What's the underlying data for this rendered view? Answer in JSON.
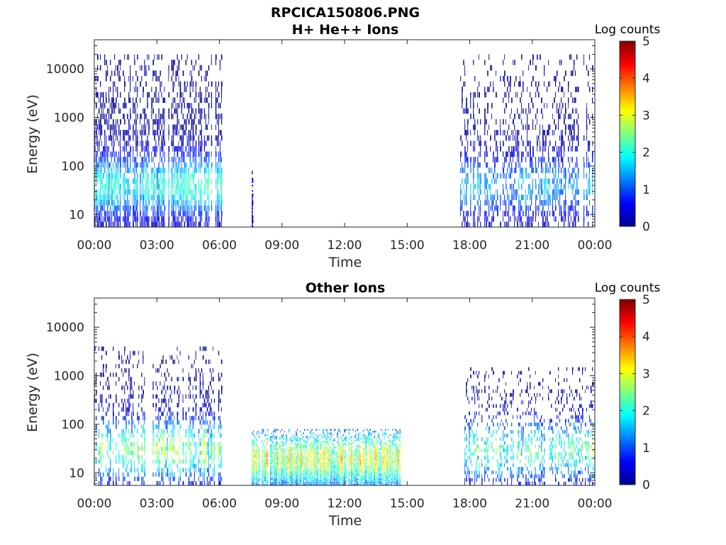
{
  "figure": {
    "title": "RPCICA150806.PNG"
  },
  "chart_data": [
    {
      "type": "heatmap",
      "title": "H+ He++ Ions",
      "xlabel": "Time",
      "ylabel": "Energy (eV)",
      "x_ticks": [
        "00:00",
        "03:00",
        "06:00",
        "09:00",
        "12:00",
        "15:00",
        "18:00",
        "21:00",
        "00:00"
      ],
      "xlim_hours": [
        0,
        24
      ],
      "y_scale": "log",
      "y_ticks": [
        "10",
        "100",
        "1000",
        "10000"
      ],
      "ylim": [
        5.5,
        40000
      ],
      "colorbar": {
        "label": "Log counts",
        "ticks": [
          "0",
          "1",
          "2",
          "3",
          "4",
          "5"
        ],
        "range": [
          0,
          5
        ],
        "colormap": "jet"
      },
      "colors": {
        "low": "#00008f",
        "high": "#800000"
      },
      "activity_blocks": [
        {
          "start_hour": 0.0,
          "end_hour": 6.15,
          "emin": 5.5,
          "emax": 20000,
          "peak_energy": 40,
          "peak_level": 2.0,
          "density": 0.85
        },
        {
          "start_hour": 7.55,
          "end_hour": 7.65,
          "emin": 5.5,
          "emax": 80,
          "peak_energy": 40,
          "peak_level": 0.6,
          "density": 0.9
        },
        {
          "start_hour": 17.55,
          "end_hour": 24.0,
          "emin": 5.5,
          "emax": 20000,
          "peak_energy": 40,
          "peak_level": 1.4,
          "density": 0.55
        }
      ]
    },
    {
      "type": "heatmap",
      "title": "Other Ions",
      "xlabel": "Time",
      "ylabel": "Energy (eV)",
      "x_ticks": [
        "00:00",
        "03:00",
        "06:00",
        "09:00",
        "12:00",
        "15:00",
        "18:00",
        "21:00",
        "00:00"
      ],
      "xlim_hours": [
        0,
        24
      ],
      "y_scale": "log",
      "y_ticks": [
        "10",
        "100",
        "1000",
        "10000"
      ],
      "ylim": [
        5.5,
        40000
      ],
      "colorbar": {
        "label": "Log counts",
        "ticks": [
          "0",
          "1",
          "2",
          "3",
          "4",
          "5"
        ],
        "range": [
          0,
          5
        ],
        "colormap": "jet"
      },
      "colors": {
        "low": "#00008f",
        "high": "#800000"
      },
      "activity_blocks": [
        {
          "start_hour": 0.0,
          "end_hour": 6.15,
          "emin": 5.5,
          "emax": 4000,
          "peak_energy": 30,
          "peak_level": 2.6,
          "density": 0.55
        },
        {
          "start_hour": 7.55,
          "end_hour": 14.7,
          "emin": 5.5,
          "emax": 80,
          "peak_energy": 20,
          "peak_level": 3.0,
          "density": 0.95
        },
        {
          "start_hour": 17.55,
          "end_hour": 24.0,
          "emin": 5.5,
          "emax": 1500,
          "peak_energy": 30,
          "peak_level": 2.3,
          "density": 0.45
        }
      ]
    }
  ]
}
